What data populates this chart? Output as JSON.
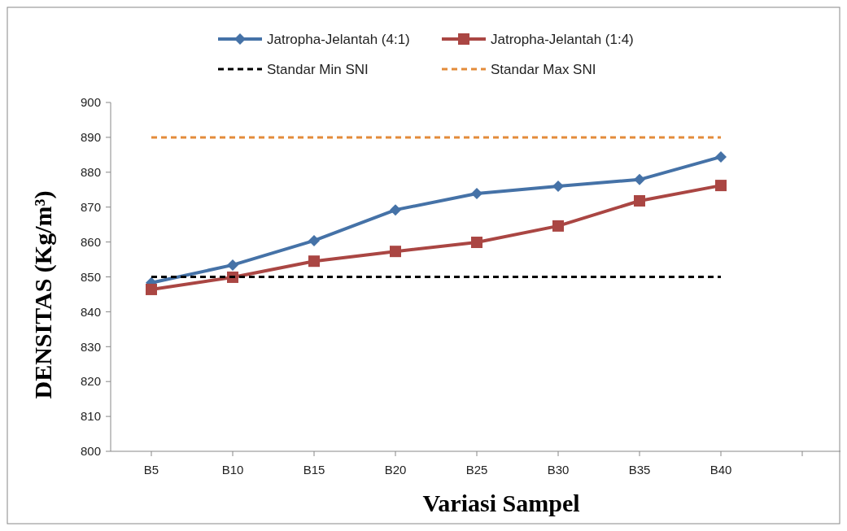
{
  "chart_data": {
    "type": "line",
    "xlabel": "Variasi Sampel",
    "ylabel": "DENSITAS (Kg/m³)",
    "categories": [
      "B5",
      "B10",
      "B15",
      "B20",
      "B25",
      "B30",
      "B35",
      "B40",
      null
    ],
    "ylim": [
      800,
      900
    ],
    "yticks": [
      800,
      810,
      820,
      830,
      840,
      850,
      860,
      870,
      880,
      890,
      900
    ],
    "grid": false,
    "legend": "top",
    "series": [
      {
        "name": "Jatropha-Jelantah (4:1)",
        "color": "#4572a7",
        "marker": "diamond",
        "line_style": "solid",
        "values": [
          848.3,
          853.4,
          860.4,
          869.2,
          873.9,
          876,
          877.9,
          884.4,
          null
        ]
      },
      {
        "name": "Jatropha-Jelantah (1:4)",
        "color": "#aa4643",
        "marker": "square",
        "line_style": "solid",
        "values": [
          846.4,
          849.9,
          854.5,
          857.3,
          859.9,
          864.6,
          871.8,
          876.2,
          null
        ]
      },
      {
        "name": "Standar Min SNI",
        "color": "#000000",
        "marker": "none",
        "line_style": "dashed",
        "values": [
          850,
          850,
          850,
          850,
          850,
          850,
          850,
          850,
          null
        ]
      },
      {
        "name": "Standar Max SNI",
        "color": "#e38b3a",
        "marker": "none",
        "line_style": "dashed",
        "values": [
          890,
          890,
          890,
          890,
          890,
          890,
          890,
          890,
          null
        ]
      }
    ]
  }
}
